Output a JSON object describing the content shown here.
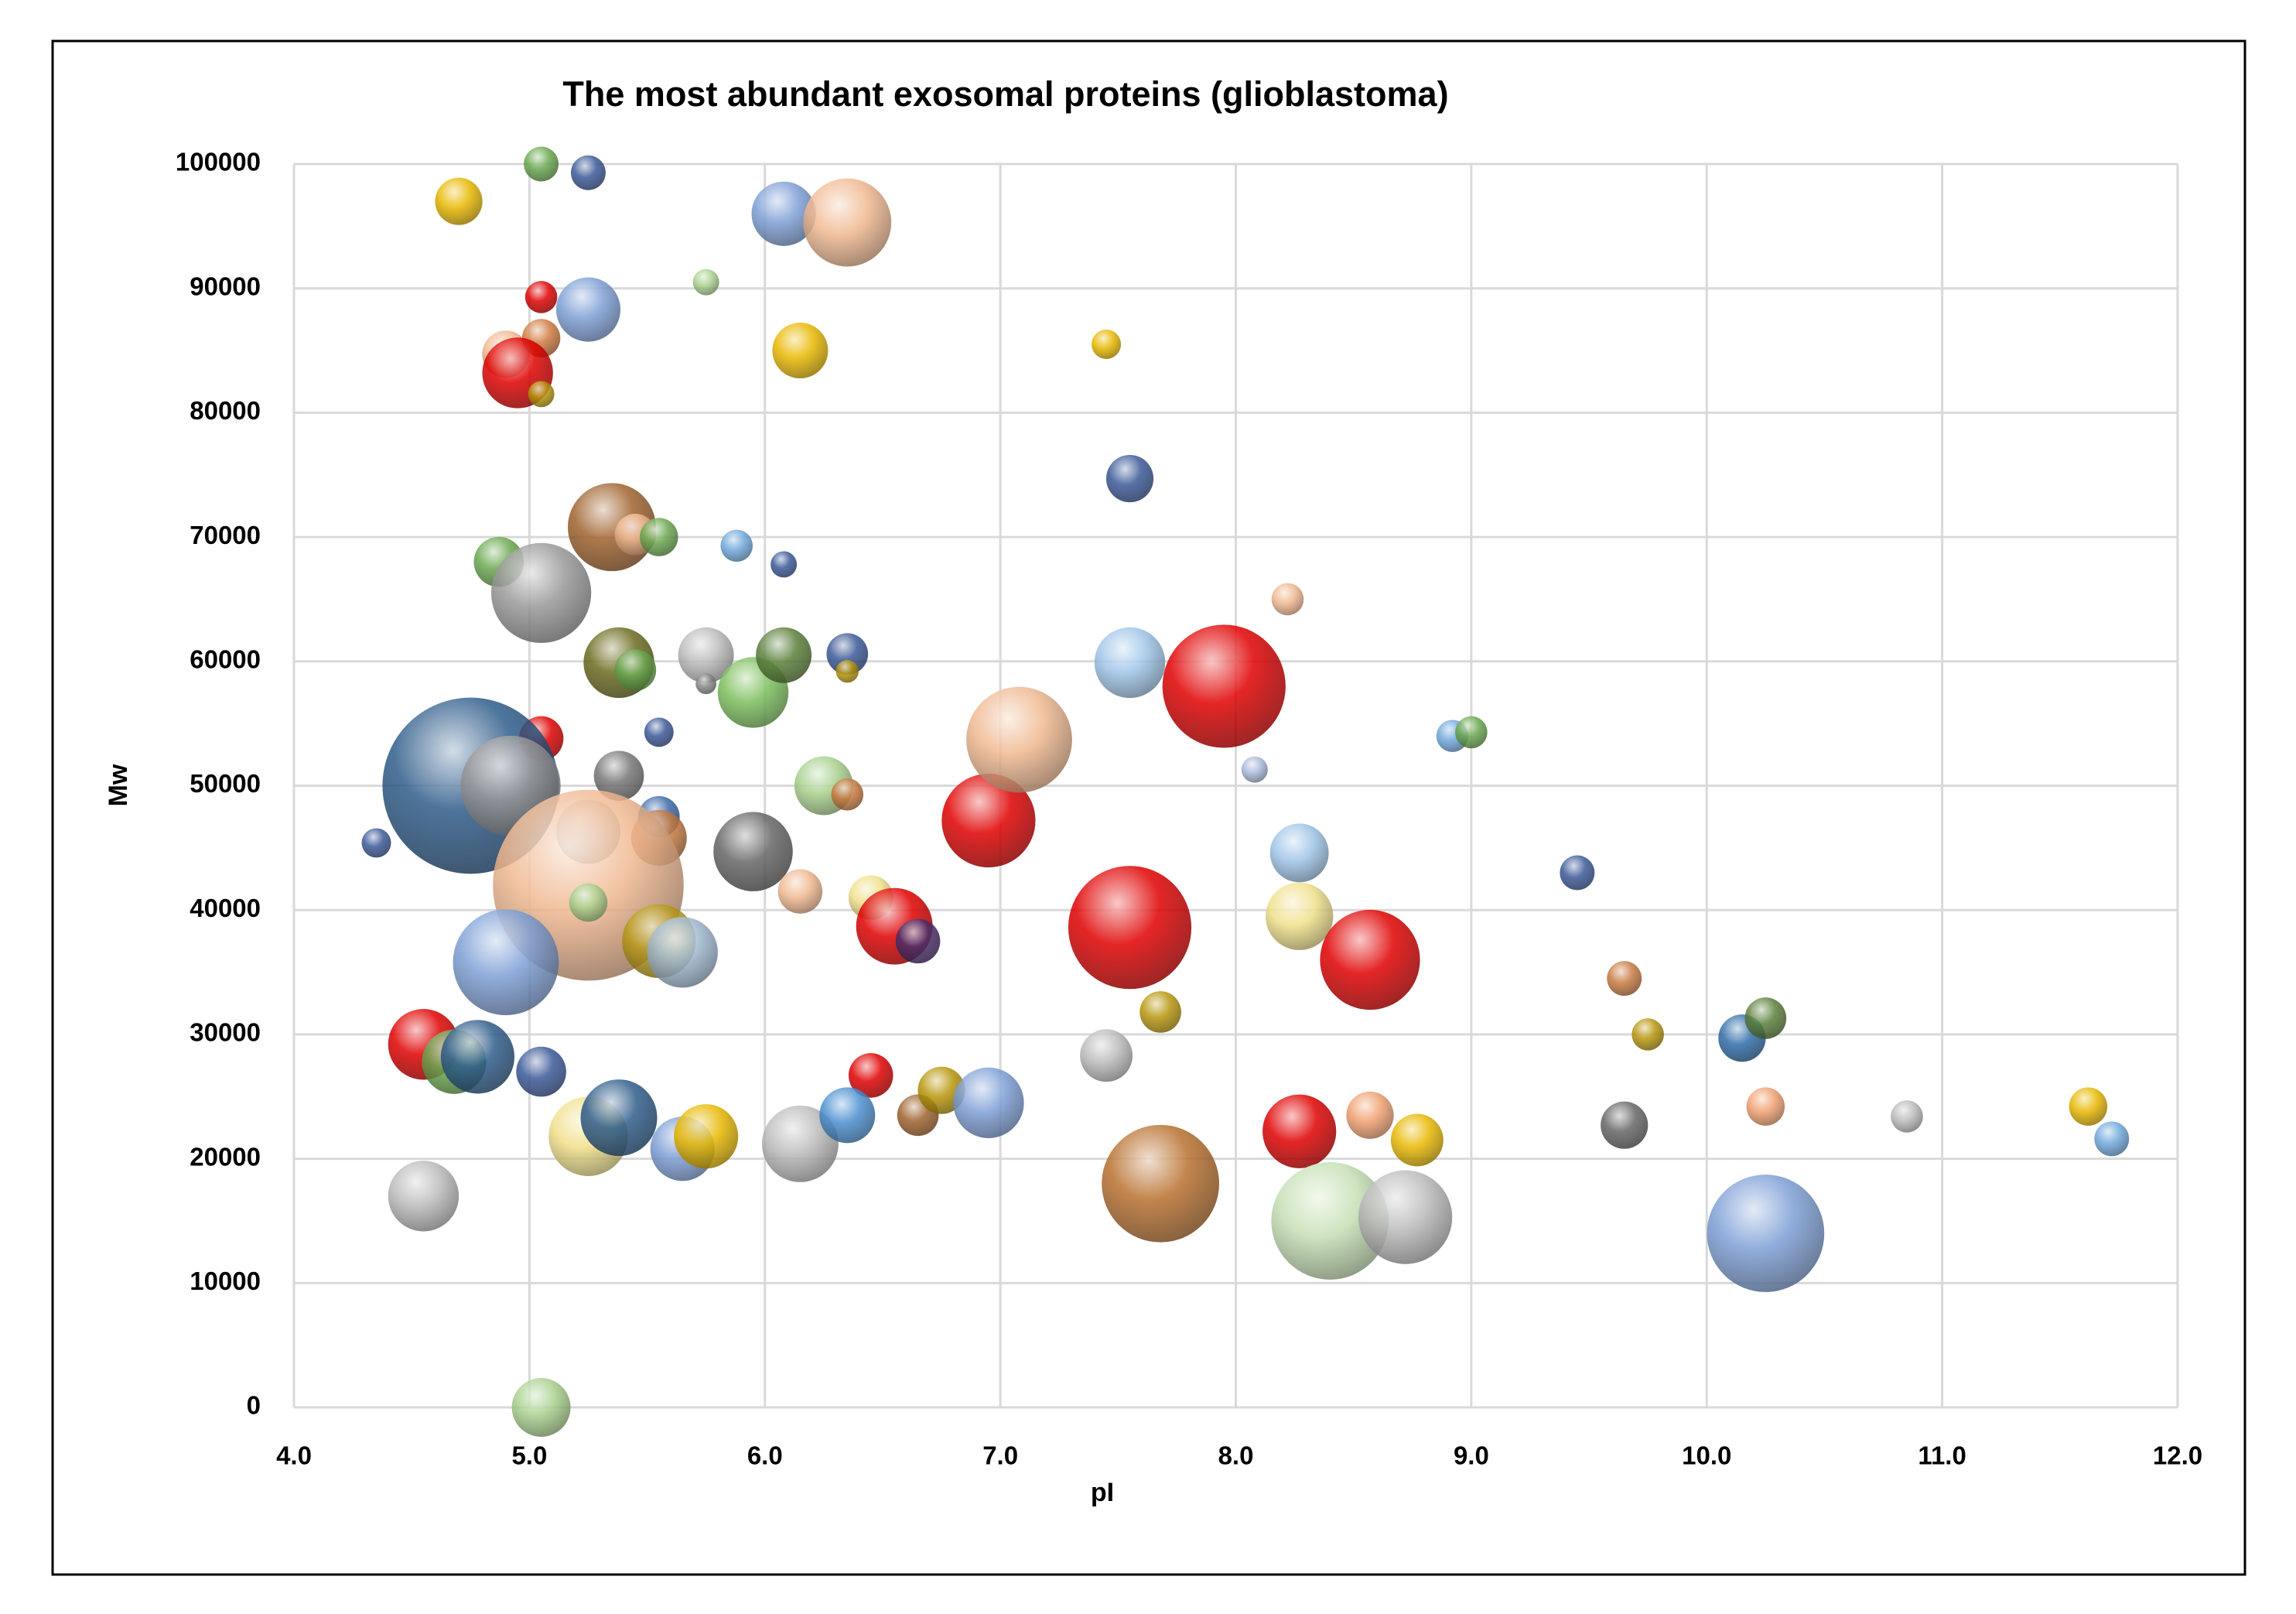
{
  "chart_data": {
    "type": "bubble",
    "title": "The most abundant exosomal proteins (glioblastoma)",
    "x_label": "pI",
    "y_label": "Mw",
    "xlim": [
      4,
      12
    ],
    "ylim": [
      0,
      100000
    ],
    "xticks": [
      {
        "value": 4,
        "label": "4.0"
      },
      {
        "value": 5,
        "label": "5.0"
      },
      {
        "value": 6,
        "label": "6.0"
      },
      {
        "value": 7,
        "label": "7.0"
      },
      {
        "value": 8,
        "label": "8.0"
      },
      {
        "value": 9,
        "label": "9.0"
      },
      {
        "value": 10,
        "label": "10.0"
      },
      {
        "value": 11,
        "label": "11.0"
      },
      {
        "value": 12,
        "label": "12.0"
      }
    ],
    "yticks": [
      0,
      10000,
      20000,
      30000,
      40000,
      50000,
      60000,
      70000,
      80000,
      90000,
      100000
    ],
    "grid": true,
    "x": [
      4.7,
      5.05,
      5.25,
      6.08,
      6.35,
      5.75,
      5.05,
      5.25,
      4.9,
      5.05,
      4.95,
      5.05,
      6.15,
      7.45,
      7.55,
      5.35,
      5.45,
      5.55,
      5.88,
      6.08,
      4.87,
      5.05,
      8.22,
      5.38,
      5.45,
      5.75,
      5.75,
      5.95,
      6.08,
      6.35,
      6.35,
      7.55,
      7.95,
      5.05,
      5.55,
      4.75,
      4.92,
      5.38,
      5.55,
      5.55,
      5.25,
      5.25,
      4.35,
      5.25,
      5.95,
      6.25,
      6.35,
      6.15,
      6.45,
      6.55,
      6.65,
      6.95,
      7.08,
      7.55,
      8.08,
      8.27,
      8.27,
      8.57,
      8.92,
      9.0,
      9.45,
      9.65,
      9.75,
      10.15,
      10.25,
      4.9,
      5.55,
      5.65,
      7.68,
      4.55,
      4.68,
      4.78,
      5.05,
      6.45,
      6.65,
      6.75,
      6.95,
      7.45,
      5.25,
      5.38,
      5.65,
      5.75,
      6.15,
      6.35,
      4.55,
      5.05,
      7.68,
      8.27,
      8.4,
      8.57,
      8.72,
      8.77,
      9.65,
      10.25,
      10.25,
      10.85,
      11.62,
      11.72
    ],
    "values": [
      97000,
      100000,
      99300,
      96000,
      95300,
      90500,
      89300,
      88300,
      84700,
      86000,
      83200,
      81500,
      85000,
      85500,
      74700,
      70800,
      70200,
      70000,
      69300,
      67800,
      68000,
      65500,
      65000,
      59900,
      59300,
      60500,
      58200,
      57500,
      60500,
      60600,
      59200,
      59900,
      58000,
      53800,
      54300,
      50000,
      50000,
      50800,
      47500,
      45800,
      46300,
      42000,
      45400,
      40600,
      44700,
      50000,
      49300,
      41500,
      41000,
      38700,
      37500,
      47200,
      53700,
      38600,
      51300,
      44600,
      39500,
      36000,
      54000,
      54300,
      43000,
      34500,
      30000,
      29700,
      31300,
      35800,
      37500,
      36600,
      31800,
      29200,
      27800,
      28200,
      27000,
      26700,
      23500,
      25500,
      24500,
      28300,
      21800,
      23300,
      20800,
      21800,
      21200,
      23500,
      17000,
      0,
      18000,
      22200,
      15000,
      23500,
      15300,
      21500,
      22700,
      14000,
      24200,
      23400,
      24200,
      21600
    ],
    "sizes": [
      26,
      14,
      14,
      48,
      90,
      8,
      12,
      48,
      26,
      17,
      58,
      8,
      36,
      10,
      26,
      90,
      20,
      17,
      12,
      8,
      29,
      116,
      12,
      58,
      20,
      36,
      5,
      58,
      36,
      20,
      6,
      58,
      176,
      23,
      10,
      360,
      116,
      29,
      20,
      36,
      48,
      422,
      10,
      17,
      73,
      40,
      12,
      23,
      23,
      68,
      23,
      102,
      130,
      176,
      8,
      40,
      53,
      116,
      12,
      12,
      14,
      14,
      12,
      26,
      20,
      130,
      63,
      58,
      20,
      58,
      48,
      63,
      29,
      23,
      20,
      26,
      58,
      32,
      73,
      68,
      48,
      48,
      68,
      36,
      58,
      40,
      160,
      63,
      160,
      26,
      102,
      32,
      26,
      160,
      17,
      12,
      17,
      14
    ],
    "colors": [
      "#e8b800",
      "#6aa84f",
      "#3b5998",
      "#7d9fd6",
      "#f0b890",
      "#a8d08d",
      "#e00000",
      "#7d9fd6",
      "#f0b890",
      "#d07a40",
      "#e00000",
      "#b8960c",
      "#e8b800",
      "#e8b800",
      "#3b5998",
      "#a0622d",
      "#f0b890",
      "#6aa84f",
      "#6fa8dc",
      "#3b5998",
      "#6aa84f",
      "#999999",
      "#f0b890",
      "#6b6b1e",
      "#6aa84f",
      "#bbbbbb",
      "#888888",
      "#7cbf5c",
      "#5a7f3a",
      "#3b5998",
      "#b8960c",
      "#9fc5e8",
      "#e00000",
      "#e00000",
      "#3b5998",
      "#2e5c8a",
      "#999999",
      "#777777",
      "#3d6aa8",
      "#c87a40",
      "#bbbbbb",
      "#f0b890",
      "#3b5998",
      "#a8d08d",
      "#666666",
      "#a8d08d",
      "#c87a40",
      "#f0b890",
      "#f0e08a",
      "#e00000",
      "#4a2e6a",
      "#e00000",
      "#f0b890",
      "#e00000",
      "#a9b8d8",
      "#9fc5e8",
      "#f0e08a",
      "#e00000",
      "#6fa8dc",
      "#6aa84f",
      "#3b5998",
      "#c87a40",
      "#b8960c",
      "#2e6ca8",
      "#5a7f3a",
      "#7d9fd6",
      "#b89a1a",
      "#9fb8d0",
      "#b8960c",
      "#e00000",
      "#6aa84f",
      "#2e5c8a",
      "#3b5998",
      "#e00000",
      "#a0622d",
      "#b8960c",
      "#7d9fd6",
      "#bbbbbb",
      "#f0e08a",
      "#2e5c8a",
      "#7d9fd6",
      "#e8b800",
      "#bbbbbb",
      "#4a8fd0",
      "#bbbbbb",
      "#a8d08d",
      "#b8702e",
      "#e00000",
      "#c5e0b4",
      "#f0a070",
      "#bbbbbb",
      "#e8b800",
      "#666666",
      "#7d9fd6",
      "#f0a070",
      "#bbbbbb",
      "#e8b800",
      "#6fa8dc"
    ]
  }
}
